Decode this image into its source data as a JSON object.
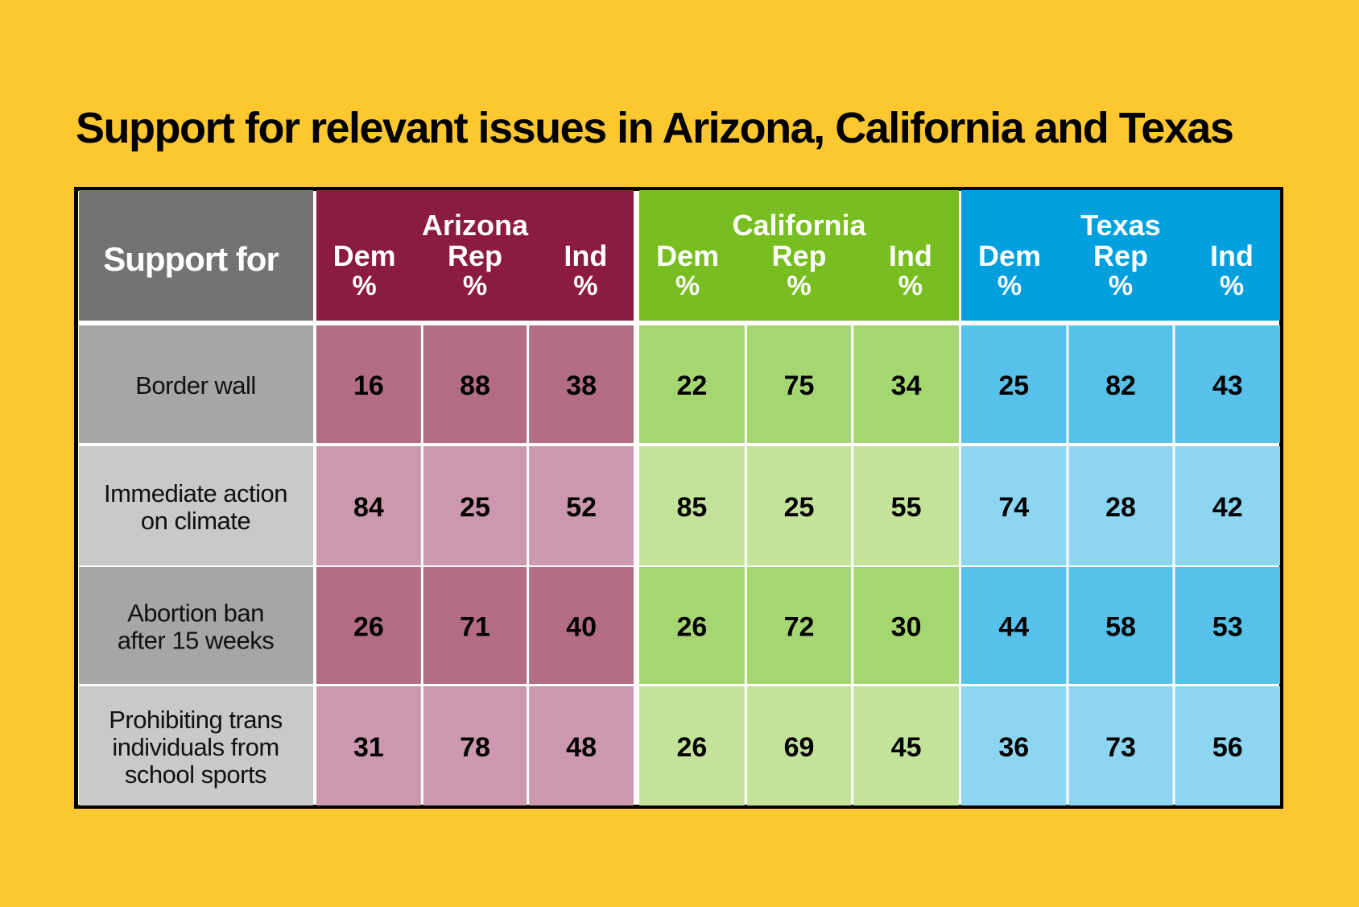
{
  "title": "Support for relevant issues in Arizona, California and Texas",
  "chart_data": {
    "type": "table",
    "title": "Support for relevant issues in Arizona, California and Texas",
    "row_header": "Support for",
    "unit": "%",
    "states": [
      {
        "name": "Arizona",
        "color": "#8B1C3F",
        "dark": "#B36D82",
        "light": "#CC98AD"
      },
      {
        "name": "California",
        "color": "#78BE20",
        "dark": "#A6D672",
        "light": "#C3E39A"
      },
      {
        "name": "Texas",
        "color": "#00A0DF",
        "dark": "#57C1EA",
        "light": "#8DD5F1"
      }
    ],
    "columns": [
      {
        "line1": "Dem",
        "line2": "%"
      },
      {
        "line1": "Rep",
        "line2": "%"
      },
      {
        "line1": "Ind",
        "line2": "%"
      }
    ],
    "rows": [
      {
        "lines": [
          "Border wall"
        ],
        "values": [
          [
            16,
            88,
            38
          ],
          [
            22,
            75,
            34
          ],
          [
            25,
            82,
            43
          ]
        ]
      },
      {
        "lines": [
          "Immediate action",
          "on climate"
        ],
        "values": [
          [
            84,
            25,
            52
          ],
          [
            85,
            25,
            55
          ],
          [
            74,
            28,
            42
          ]
        ]
      },
      {
        "lines": [
          "Abortion ban",
          "after 15 weeks"
        ],
        "values": [
          [
            26,
            71,
            40
          ],
          [
            26,
            72,
            30
          ],
          [
            44,
            58,
            53
          ]
        ]
      },
      {
        "lines": [
          "Prohibiting trans",
          "individuals from",
          "school sports"
        ],
        "values": [
          [
            31,
            78,
            48
          ],
          [
            26,
            69,
            45
          ],
          [
            36,
            73,
            56
          ]
        ]
      }
    ]
  }
}
